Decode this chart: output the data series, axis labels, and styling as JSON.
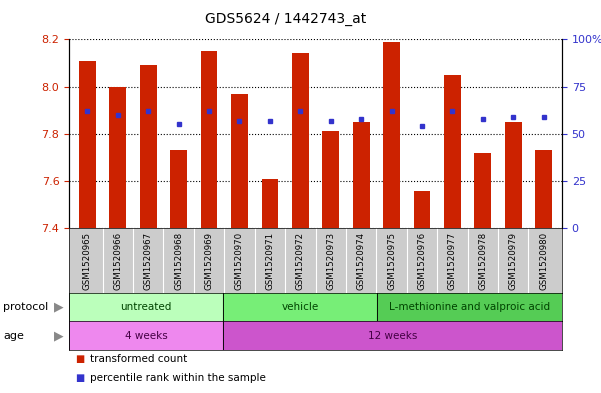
{
  "title": "GDS5624 / 1442743_at",
  "samples": [
    "GSM1520965",
    "GSM1520966",
    "GSM1520967",
    "GSM1520968",
    "GSM1520969",
    "GSM1520970",
    "GSM1520971",
    "GSM1520972",
    "GSM1520973",
    "GSM1520974",
    "GSM1520975",
    "GSM1520976",
    "GSM1520977",
    "GSM1520978",
    "GSM1520979",
    "GSM1520980"
  ],
  "transformed_count": [
    8.11,
    8.0,
    8.09,
    7.73,
    8.15,
    7.97,
    7.61,
    8.14,
    7.81,
    7.85,
    8.19,
    7.56,
    8.05,
    7.72,
    7.85,
    7.73
  ],
  "percentile_rank": [
    62,
    60,
    62,
    55,
    62,
    57,
    57,
    62,
    57,
    58,
    62,
    54,
    62,
    58,
    59,
    59
  ],
  "ylim": [
    7.4,
    8.2
  ],
  "yticks": [
    7.4,
    7.6,
    7.8,
    8.0,
    8.2
  ],
  "right_yticks": [
    0,
    25,
    50,
    75,
    100
  ],
  "bar_color": "#cc2200",
  "dot_color": "#3333cc",
  "bar_bottom": 7.4,
  "protocol_groups": [
    {
      "label": "untreated",
      "start": 0,
      "end": 5,
      "color": "#bbffbb"
    },
    {
      "label": "vehicle",
      "start": 5,
      "end": 10,
      "color": "#77ee77"
    },
    {
      "label": "L-methionine and valproic acid",
      "start": 10,
      "end": 16,
      "color": "#55cc55"
    }
  ],
  "age_groups": [
    {
      "label": "4 weeks",
      "start": 0,
      "end": 5,
      "color": "#ee88ee"
    },
    {
      "label": "12 weeks",
      "start": 5,
      "end": 16,
      "color": "#cc55cc"
    }
  ],
  "legend_items": [
    {
      "label": "transformed count",
      "color": "#cc2200"
    },
    {
      "label": "percentile rank within the sample",
      "color": "#3333cc"
    }
  ],
  "bar_color_left": "#cc2200",
  "right_ylabel_color": "#3333cc",
  "title_fontsize": 10,
  "tick_fontsize": 8,
  "protocol_label_color": "#004400",
  "age_label_color": "#440044",
  "label_box_color": "#cccccc"
}
